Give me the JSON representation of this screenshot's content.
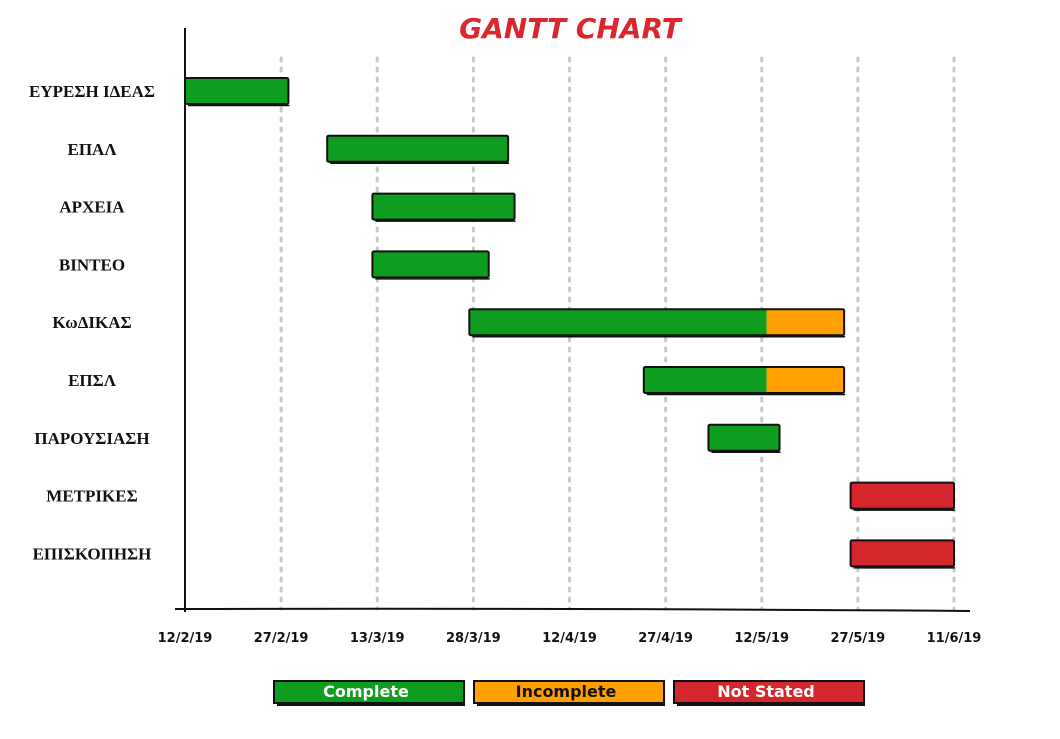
{
  "chart_data": {
    "type": "gantt",
    "title": "GANTT CHART",
    "xlabel": "",
    "ylabel": "",
    "x_ticks": [
      "12/2/19",
      "27/2/19",
      "13/3/19",
      "28/3/19",
      "12/4/19",
      "27/4/19",
      "12/5/19",
      "27/5/19",
      "11/6/19"
    ],
    "xlim": [
      "2019-02-12",
      "2019-06-11"
    ],
    "grid": "vertical-dotted",
    "colors": {
      "complete": "#0f9d1f",
      "incomplete": "#ff9f00",
      "not_stated": "#d3272d",
      "outline": "#111111",
      "grid": "#c8c8c8",
      "title": "#d8272d"
    },
    "tasks": [
      {
        "name": "ΕΥΡΕΣΗ ΙΔΕΑΣ",
        "start": "2019-02-12",
        "end": "2019-02-28",
        "complete_until": "2019-02-28",
        "status": "complete"
      },
      {
        "name": "ΕΠΑΛ",
        "start": "2019-03-06",
        "end": "2019-04-03",
        "complete_until": "2019-04-03",
        "status": "complete"
      },
      {
        "name": "ΑΡΧΕΙΑ",
        "start": "2019-03-13",
        "end": "2019-04-04",
        "complete_until": "2019-04-04",
        "status": "complete"
      },
      {
        "name": "ΒΙΝΤΕΟ",
        "start": "2019-03-13",
        "end": "2019-03-31",
        "complete_until": "2019-03-31",
        "status": "complete"
      },
      {
        "name": "ΚωΔΙΚΑΣ",
        "start": "2019-03-28",
        "end": "2019-05-25",
        "complete_until": "2019-05-13",
        "status": "partial"
      },
      {
        "name": "ΕΠΣΛ",
        "start": "2019-04-24",
        "end": "2019-05-25",
        "complete_until": "2019-05-13",
        "status": "partial"
      },
      {
        "name": "ΠΑΡΟΥΣΙΑΣΗ",
        "start": "2019-05-04",
        "end": "2019-05-15",
        "complete_until": "2019-05-15",
        "status": "complete"
      },
      {
        "name": "ΜΕΤΡΙΚΕΣ",
        "start": "2019-05-26",
        "end": "2019-06-11",
        "complete_until": null,
        "status": "not_stated"
      },
      {
        "name": "ΕΠΙΣΚΟΠΗΣΗ",
        "start": "2019-05-26",
        "end": "2019-06-11",
        "complete_until": null,
        "status": "not_stated"
      }
    ],
    "legend": {
      "placement": "bottom-center",
      "items": [
        {
          "label": "Complete",
          "key": "complete",
          "text_color": "#ffffff"
        },
        {
          "label": "Incomplete",
          "key": "incomplete",
          "text_color": "#111111"
        },
        {
          "label": "Not Stated",
          "key": "not_stated",
          "text_color": "#ffffff"
        }
      ]
    }
  }
}
